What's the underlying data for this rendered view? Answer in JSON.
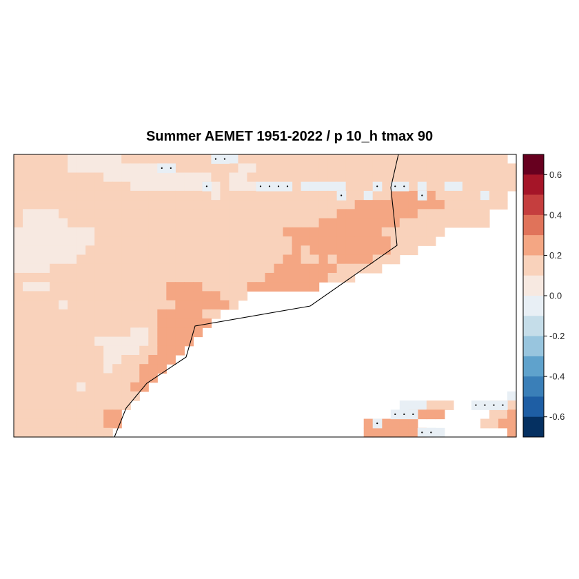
{
  "chart_data": {
    "type": "heatmap",
    "title": "Summer AEMET 1951-2022 / p 10_h tmax 90",
    "colorbar": {
      "ticks": [
        "0.6",
        "0.4",
        "0.2",
        "0.0",
        "-0.2",
        "-0.4",
        "-0.6"
      ],
      "tick_values": [
        0.6,
        0.4,
        0.2,
        0.0,
        -0.2,
        -0.4,
        -0.6
      ],
      "range": [
        -0.7,
        0.7
      ],
      "bins": [
        {
          "from": 0.6,
          "to": 0.7,
          "color": "#67001f"
        },
        {
          "from": 0.5,
          "to": 0.6,
          "color": "#a51528"
        },
        {
          "from": 0.4,
          "to": 0.5,
          "color": "#c53e3e"
        },
        {
          "from": 0.3,
          "to": 0.4,
          "color": "#e0735a"
        },
        {
          "from": 0.2,
          "to": 0.3,
          "color": "#f4a683"
        },
        {
          "from": 0.1,
          "to": 0.2,
          "color": "#f9d2bb"
        },
        {
          "from": 0.0,
          "to": 0.1,
          "color": "#f7e9e1"
        },
        {
          "from": -0.1,
          "to": 0.0,
          "color": "#e8eff5"
        },
        {
          "from": -0.2,
          "to": -0.1,
          "color": "#c5dde9"
        },
        {
          "from": -0.3,
          "to": -0.2,
          "color": "#98c5de"
        },
        {
          "from": -0.4,
          "to": -0.3,
          "color": "#5fa2cc"
        },
        {
          "from": -0.5,
          "to": -0.4,
          "color": "#3a7fb8"
        },
        {
          "from": -0.6,
          "to": -0.5,
          "color": "#1e5ea4"
        },
        {
          "from": -0.7,
          "to": -0.6,
          "color": "#053061"
        }
      ]
    },
    "grid": {
      "cols": 56,
      "rows": 31,
      "legend": {
        "w": 0.05,
        "l": 0.15,
        "m": 0.25,
        "b": -0.05,
        "_": null
      },
      "rows_data": [
        "llllllwwwwwwlllllllllllbbllllllllllllllllllllllllllllll",
        "llllllwwwwwwwwwwwllllllllwwlllllllllllllllllllllllllllll",
        "llllllllllwwwwwwwwwwwwllwwllllllllllllllllllllllllllllll",
        "lllllllllllllwwwwwwwwlwlwwwlllllbbbbbllllllllbllbbllllll",
        "llllllllllllllllllllllwllllllllllllllllbllmmmmmlllllbll_",
        "llllllllllllllllllllllllllllllllllllllmmmmmmmmmmlllllll_",
        "lwwwwlllllllllllllllllllllllllllllllmmmmmmmmmllllllll__",
        "lwwwwwllllllllllllllllllllllllllllmmmmmmmmmllllllllll__",
        "wwwwwwwwwlllllllllllllllllllllmmmmmmmmmmmlllllll_______",
        "wwwwwwwwwllllllllllllllllllllllmmmmmmmmmmmlllll________",
        "wwwwwwwwlllllllllllllllllllllllmlmmmmmmmmmlll__________",
        "wwwwwwwlllllllllllllllllllllllmmllmlmmmmlll____________",
        "wwwwlllllllllllllllllllllllllmmmmmmmlllll______________",
        "llllllllllllllllllllllllllllmmmmmmmlll_________________",
        "lwwwlllllllllllllmmmmlllllmmmmmmmm_____________________",
        "lllllllllllllllllmmmmmmlll_____________________________",
        "lllllwllllllllllllmmmmmml______________________________",
        "llllllllllllllllmmmmmll________________________________",
        "llllllllllllllllmmmmmm_________________________________",
        "lllllllllllllwwlmmmmm__________________________________",
        "lllllllllwwwwwwlmmmm___________________________________",
        "llllllllllwwwwllmmm____________________________________",
        "llllllllllwwlllmmm_____________________________________",
        "llllllllllwlllmmm______________________________________",
        "llllllllllllllmm_______________________________________",
        "lllllllwlllllmm________________________________________________",
        "llllllllllllll_________________________________________bbbbll",
        "lllllllllllll______________________________bbblll____lllmmll",
        "llllllllllmm________________________________lmmm_____llmmmml",
        "llllllllllmm___________________________mmmmmm_______llmmmml",
        "lllllllllll____________________________mmmmmmmbb_______mmml"
      ],
      "cells_extra_note": null
    },
    "stippled_cells": [
      [
        16,
        1
      ],
      [
        17,
        1
      ],
      [
        22,
        0
      ],
      [
        23,
        0
      ],
      [
        21,
        3
      ],
      [
        27,
        3
      ],
      [
        28,
        3
      ],
      [
        29,
        3
      ],
      [
        30,
        3
      ],
      [
        36,
        4
      ],
      [
        40,
        3
      ],
      [
        42,
        3
      ],
      [
        43,
        3
      ],
      [
        45,
        4
      ],
      [
        40,
        29
      ],
      [
        42,
        28
      ],
      [
        43,
        28
      ],
      [
        44,
        28
      ],
      [
        45,
        30
      ],
      [
        46,
        30
      ],
      [
        51,
        27
      ],
      [
        52,
        27
      ],
      [
        53,
        27
      ],
      [
        54,
        27
      ]
    ]
  }
}
